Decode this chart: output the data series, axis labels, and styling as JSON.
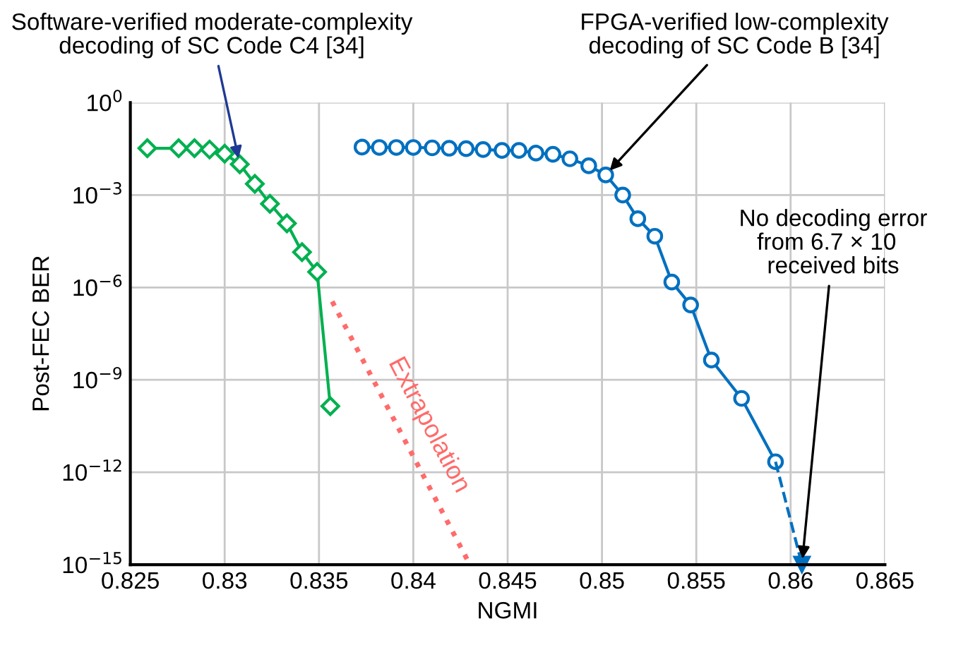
{
  "chart_data": {
    "type": "line",
    "xlabel": "NGMI",
    "ylabel": "Post-FEC BER",
    "log": "y",
    "xlim": [
      0.825,
      0.865
    ],
    "xticks": [
      0.825,
      0.83,
      0.835,
      0.84,
      0.845,
      0.85,
      0.855,
      0.86,
      0.865
    ],
    "ylim": [
      1e-15,
      1
    ],
    "yticks": [
      {
        "value": 1,
        "label": "10$^{0}$"
      },
      {
        "value": 0.001,
        "label": "10$^{−3}$"
      },
      {
        "value": 1e-06,
        "label": "10$^{−6}$"
      },
      {
        "value": 1e-09,
        "label": "10$^{−9}$"
      },
      {
        "value": 1e-12,
        "label": "10$^{−12}$"
      },
      {
        "value": 1e-15,
        "label": "10$^{−15}$"
      }
    ],
    "grid": true,
    "legend": false,
    "series": [
      {
        "color": "#00b050",
        "marker": "diamond",
        "line_style": "solid",
        "x": [
          0.8259,
          0.82756,
          0.8284,
          0.8292,
          0.83,
          0.8308,
          0.8316,
          0.8324,
          0.8333,
          0.8341,
          0.8349,
          0.8356
        ],
        "values": [
          0.033,
          0.033,
          0.033,
          0.03,
          0.022,
          0.01,
          0.0023,
          0.00052,
          0.00012,
          1.4e-05,
          3.2e-06,
          1.4e-10
        ]
      },
      {
        "color": "#0070c0",
        "marker": "circle",
        "line_style": "solid",
        "x": [
          0.83728,
          0.8382,
          0.8391,
          0.84,
          0.841,
          0.8419,
          0.8428,
          0.8437,
          0.8447,
          0.8456,
          0.8465,
          0.8474,
          0.8483,
          0.8493,
          0.8502,
          0.8511,
          0.8519,
          0.8528,
          0.8537,
          0.8547,
          0.8558,
          0.8574,
          0.8592
        ],
        "values": [
          0.036,
          0.035,
          0.035,
          0.035,
          0.034,
          0.033,
          0.032,
          0.03,
          0.028,
          0.028,
          0.023,
          0.021,
          0.015,
          0.0089,
          0.0045,
          0.001,
          0.00017,
          4.6e-05,
          1.5e-06,
          2.7e-07,
          4.4e-09,
          2.5e-10,
          2.2e-12
        ]
      },
      {
        "color": "#0070c0",
        "marker": "triangle",
        "line_style": "dashed",
        "x": [
          0.8592,
          0.8606
        ],
        "values": [
          2.2e-12,
          1e-15
        ]
      },
      {
        "name": "Extrapolation",
        "color": "#ff6b6b",
        "marker": "none",
        "line_style": "dotted",
        "x": [
          0.8357,
          0.843
        ],
        "values": [
          3.5e-07,
          1e-15
        ]
      }
    ],
    "annotations": [
      {
        "text": "Software-verified moderate-complexity\ndecoding of SC Code C4 [34]",
        "x": 0.8308,
        "y": 0.01
      },
      {
        "text": "FPGA-verified low-complexity\ndecoding of SC Code B [34]",
        "x": 0.8502,
        "y": 0.0045
      },
      {
        "text": "No decoding error\nfrom 6.7 × 10  \nreceived bits",
        "x": 0.8606,
        "y": 1e-15
      }
    ]
  }
}
